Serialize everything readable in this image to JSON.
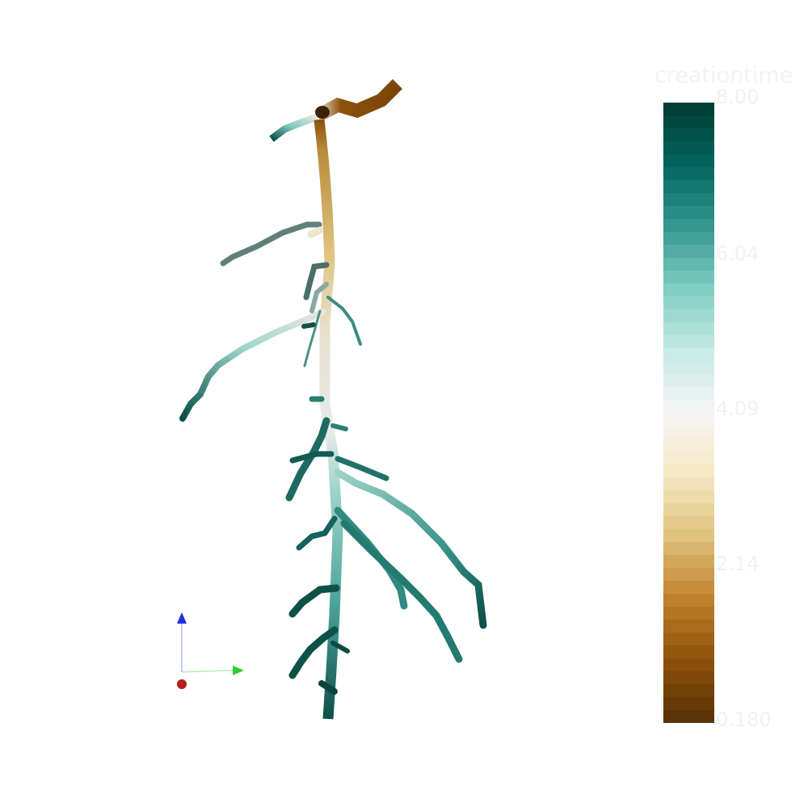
{
  "colorbar": {
    "title": "creationtime",
    "labels": [
      "8.00",
      "6.04",
      "4.09",
      "2.14",
      "0.180"
    ],
    "stops": [
      "#003c30",
      "#01665e",
      "#35978f",
      "#80cdc1",
      "#c7eae5",
      "#f5f5f5",
      "#f6e8c3",
      "#dfc27d",
      "#bf812d",
      "#8c510a",
      "#543005"
    ]
  },
  "scene": {
    "palette": {
      "root_base": "#8c510a",
      "root_upper": "#c5a15c",
      "root_mid": "#e9e4d6",
      "root_lower": "#6cbbb0",
      "branch_dark": "#0b5a50",
      "axis_x": "#cc1f1f",
      "axis_y": "#33cc33",
      "axis_z": "#1f2fdd"
    }
  }
}
